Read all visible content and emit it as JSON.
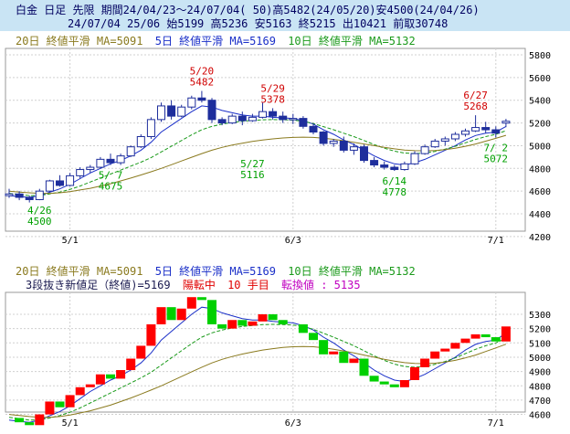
{
  "header": {
    "line1": "白金 日足 先限 期間24/04/23～24/07/04( 50)高5482(24/05/20)安4500(24/04/26)",
    "line2": "24/07/04 25/06 始5199 高5236 安5163 終5215 出10421 前取30748"
  },
  "legend": {
    "ma20": "20日 終値平滑 MA=5091",
    "ma5": "5日 終値平滑 MA=5169",
    "ma10": "10日 終値平滑 MA=5132"
  },
  "lower_info": {
    "label": "3段抜き新値足（終値)=5169",
    "status": "陽転中",
    "count": "10 手目",
    "reversal": "転換値 : 5135"
  },
  "colors": {
    "up_candle": "#ffffff",
    "down_candle": "#1e2e9c",
    "ma5": "#1a2fc8",
    "ma10": "#1a9a1a",
    "ma20": "#8a7a1e",
    "kagi_up": "#ff0000",
    "kagi_down": "#00d000"
  },
  "chart_data": [
    {
      "type": "candlestick",
      "x_ticks": [
        "5/1",
        "6/3",
        "7/1"
      ],
      "y_ticks": [
        "5800",
        "5600",
        "5400",
        "5200",
        "5000",
        "4800",
        "4600",
        "4400",
        "4200"
      ],
      "ylim": [
        4200,
        5900
      ],
      "annotations": [
        {
          "date": "4/26",
          "value": "4500",
          "color": "green"
        },
        {
          "date": "5/ 7",
          "value": "4675",
          "color": "green"
        },
        {
          "date": "5/20",
          "value": "5482",
          "color": "red"
        },
        {
          "date": "5/27",
          "value": "5116",
          "color": "green"
        },
        {
          "date": "5/29",
          "value": "5378",
          "color": "red"
        },
        {
          "date": "6/14",
          "value": "4778",
          "color": "green"
        },
        {
          "date": "6/27",
          "value": "5268",
          "color": "red"
        },
        {
          "date": "7/ 2",
          "value": "5072",
          "color": "green"
        }
      ],
      "candles": [
        [
          4560,
          4620,
          4540,
          4575
        ],
        [
          4575,
          4600,
          4520,
          4545
        ],
        [
          4545,
          4560,
          4500,
          4525
        ],
        [
          4525,
          4620,
          4520,
          4600
        ],
        [
          4600,
          4700,
          4590,
          4690
        ],
        [
          4690,
          4740,
          4640,
          4650
        ],
        [
          4650,
          4760,
          4640,
          4735
        ],
        [
          4735,
          4810,
          4710,
          4790
        ],
        [
          4790,
          4830,
          4760,
          4810
        ],
        [
          4810,
          4900,
          4800,
          4880
        ],
        [
          4880,
          4930,
          4830,
          4850
        ],
        [
          4850,
          4930,
          4830,
          4910
        ],
        [
          4910,
          5000,
          4900,
          4990
        ],
        [
          4990,
          5100,
          4980,
          5080
        ],
        [
          5080,
          5250,
          5060,
          5230
        ],
        [
          5230,
          5380,
          5210,
          5350
        ],
        [
          5350,
          5400,
          5230,
          5260
        ],
        [
          5260,
          5360,
          5250,
          5340
        ],
        [
          5340,
          5440,
          5320,
          5420
        ],
        [
          5420,
          5482,
          5380,
          5400
        ],
        [
          5400,
          5420,
          5200,
          5230
        ],
        [
          5230,
          5250,
          5180,
          5200
        ],
        [
          5200,
          5280,
          5190,
          5260
        ],
        [
          5260,
          5300,
          5180,
          5220
        ],
        [
          5220,
          5280,
          5210,
          5250
        ],
        [
          5250,
          5378,
          5240,
          5300
        ],
        [
          5300,
          5330,
          5230,
          5260
        ],
        [
          5260,
          5300,
          5200,
          5230
        ],
        [
          5230,
          5280,
          5190,
          5240
        ],
        [
          5240,
          5260,
          5150,
          5170
        ],
        [
          5170,
          5200,
          5100,
          5120
        ],
        [
          5120,
          5130,
          5000,
          5020
        ],
        [
          5020,
          5060,
          4990,
          5040
        ],
        [
          5040,
          5080,
          4940,
          4960
        ],
        [
          4960,
          5020,
          4920,
          4990
        ],
        [
          4990,
          5010,
          4850,
          4870
        ],
        [
          4870,
          4900,
          4810,
          4830
        ],
        [
          4830,
          4860,
          4790,
          4810
        ],
        [
          4810,
          4830,
          4778,
          4790
        ],
        [
          4790,
          4860,
          4780,
          4840
        ],
        [
          4840,
          4950,
          4830,
          4930
        ],
        [
          4930,
          5010,
          4920,
          4990
        ],
        [
          4990,
          5060,
          4980,
          5040
        ],
        [
          5040,
          5080,
          5000,
          5060
        ],
        [
          5060,
          5120,
          5040,
          5100
        ],
        [
          5100,
          5150,
          5080,
          5130
        ],
        [
          5130,
          5268,
          5120,
          5160
        ],
        [
          5160,
          5210,
          5110,
          5140
        ],
        [
          5140,
          5170,
          5072,
          5110
        ],
        [
          5199,
          5236,
          5163,
          5215
        ]
      ],
      "series": [
        {
          "name": "5日 終値平滑",
          "values": [
            4560,
            4552,
            4545,
            4560,
            4590,
            4620,
            4660,
            4710,
            4760,
            4800,
            4840,
            4870,
            4910,
            4960,
            5030,
            5120,
            5180,
            5240,
            5300,
            5350,
            5340,
            5310,
            5290,
            5270,
            5260,
            5260,
            5250,
            5245,
            5240,
            5220,
            5190,
            5140,
            5100,
            5050,
            5010,
            4960,
            4910,
            4870,
            4840,
            4830,
            4850,
            4880,
            4920,
            4960,
            5000,
            5050,
            5090,
            5110,
            5120,
            5169
          ]
        },
        {
          "name": "10日 終値平滑",
          "values": [
            4580,
            4570,
            4560,
            4562,
            4575,
            4592,
            4615,
            4645,
            4680,
            4715,
            4750,
            4785,
            4820,
            4855,
            4895,
            4945,
            4995,
            5045,
            5095,
            5140,
            5170,
            5190,
            5205,
            5215,
            5222,
            5228,
            5230,
            5228,
            5225,
            5215,
            5195,
            5168,
            5140,
            5110,
            5080,
            5045,
            5010,
            4978,
            4952,
            4935,
            4930,
            4935,
            4950,
            4970,
            4995,
            5025,
            5055,
            5080,
            5100,
            5132
          ]
        },
        {
          "name": "20日 終値平滑",
          "values": [
            4600,
            4592,
            4585,
            4580,
            4580,
            4585,
            4595,
            4610,
            4625,
            4645,
            4665,
            4690,
            4715,
            4742,
            4770,
            4800,
            4832,
            4865,
            4898,
            4930,
            4960,
            4985,
            5005,
            5022,
            5037,
            5050,
            5060,
            5068,
            5073,
            5075,
            5073,
            5066,
            5056,
            5044,
            5030,
            5015,
            5000,
            4985,
            4972,
            4962,
            4956,
            4955,
            4958,
            4966,
            4978,
            4995,
            5015,
            5040,
            5065,
            5091
          ]
        }
      ]
    },
    {
      "type": "new-price-bars",
      "x_ticks": [
        "5/1",
        "6/3",
        "7/1"
      ],
      "y_ticks": [
        "5300",
        "5200",
        "5100",
        "5000",
        "4900",
        "4800",
        "4700",
        "4600"
      ],
      "ylim": [
        4550,
        5350
      ]
    }
  ]
}
